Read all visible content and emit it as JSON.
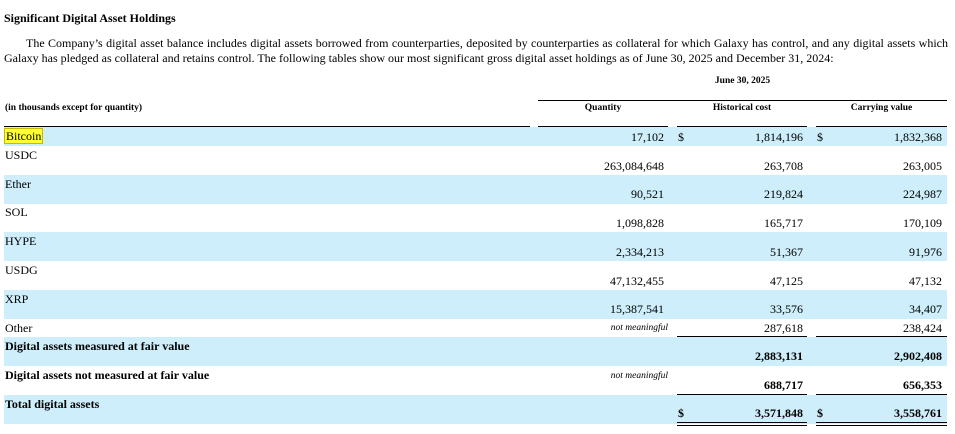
{
  "section_title": "Significant Digital Asset Holdings",
  "paragraph": "The Company’s digital asset balance includes digital assets borrowed from counterparties, deposited by counterparties as collateral for which Galaxy has control, and any digital assets which Galaxy has pledged as collateral and retains control. The following tables show our most significant gross digital asset holdings as of June 30, 2025 and December 31, 2024:",
  "table": {
    "period": "June 30, 2025",
    "units_label": "(in thousands except for quantity)",
    "columns": [
      "Quantity",
      "Historical cost",
      "Carrying value"
    ],
    "currency_symbol": "$",
    "rows": [
      {
        "label": "Bitcoin",
        "quantity": "17,102",
        "historical_cost": "1,814,196",
        "carrying_value": "1,832,368"
      },
      {
        "label": "USDC",
        "quantity": "263,084,648",
        "historical_cost": "263,708",
        "carrying_value": "263,005"
      },
      {
        "label": "Ether",
        "quantity": "90,521",
        "historical_cost": "219,824",
        "carrying_value": "224,987"
      },
      {
        "label": "SOL",
        "quantity": "1,098,828",
        "historical_cost": "165,717",
        "carrying_value": "170,109"
      },
      {
        "label": "HYPE",
        "quantity": "2,334,213",
        "historical_cost": "51,367",
        "carrying_value": "91,976"
      },
      {
        "label": "USDG",
        "quantity": "47,132,455",
        "historical_cost": "47,125",
        "carrying_value": "47,132"
      },
      {
        "label": "XRP",
        "quantity": "15,387,541",
        "historical_cost": "33,576",
        "carrying_value": "34,407"
      },
      {
        "label": "Other",
        "quantity": "not meaningful",
        "historical_cost": "287,618",
        "carrying_value": "238,424"
      }
    ],
    "subtotal_fair": {
      "label": "Digital assets measured at fair value",
      "historical_cost": "2,883,131",
      "carrying_value": "2,902,408"
    },
    "subtotal_not_fair": {
      "label": "Digital assets not measured at fair value",
      "quantity": "not meaningful",
      "historical_cost": "688,717",
      "carrying_value": "656,353"
    },
    "total": {
      "label": "Total digital assets",
      "historical_cost": "3,571,848",
      "carrying_value": "3,558,761"
    }
  },
  "colors": {
    "row_highlight": "#cdeefa",
    "text_highlight": "#ffff33"
  }
}
